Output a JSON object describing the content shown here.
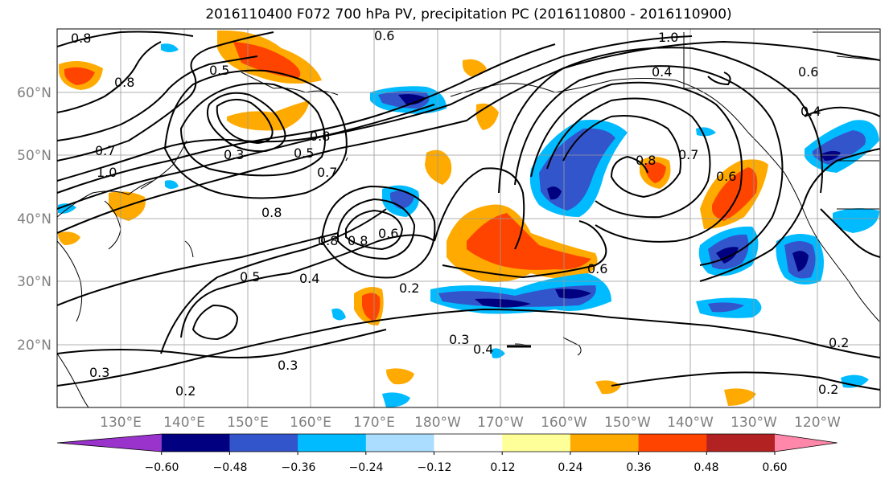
{
  "title": "2016110400 F072 700 hPa PV, precipitation PC (2016110800 - 2016110900)",
  "map": {
    "lat_labels": [
      "60°N",
      "50°N",
      "40°N",
      "30°N",
      "20°N"
    ],
    "lon_labels": [
      "130°E",
      "140°E",
      "150°E",
      "160°E",
      "170°E",
      "180°W",
      "170°W",
      "160°W",
      "150°W",
      "140°W",
      "130°W",
      "120°W"
    ],
    "contour_labels": [
      "0.8",
      "0.6",
      "0.5",
      "0.8",
      "0.7",
      "1.0",
      "0.3",
      "0.4",
      "0.3",
      "0.7",
      "0.8",
      "0.5",
      "0.8",
      "0.6",
      "0.2",
      "0.3",
      "0.3",
      "0.2",
      "0.2",
      "0.8",
      "0.7",
      "0.4",
      "0.8",
      "0.6",
      "1.0",
      "0.4",
      "0.6",
      "0.8",
      "0.5",
      "0.4",
      "0.6",
      "0.2"
    ]
  },
  "colorbar": {
    "ticks": [
      "−0.60",
      "−0.48",
      "−0.36",
      "−0.24",
      "−0.12",
      "0.12",
      "0.24",
      "0.36",
      "0.48",
      "0.60"
    ],
    "colors": [
      "#9933cc",
      "#000080",
      "#3355cc",
      "#00bbff",
      "#aaddff",
      "#ffffff",
      "#ffff99",
      "#ffaa00",
      "#ff4400",
      "#b22222",
      "#ff88aa"
    ]
  }
}
